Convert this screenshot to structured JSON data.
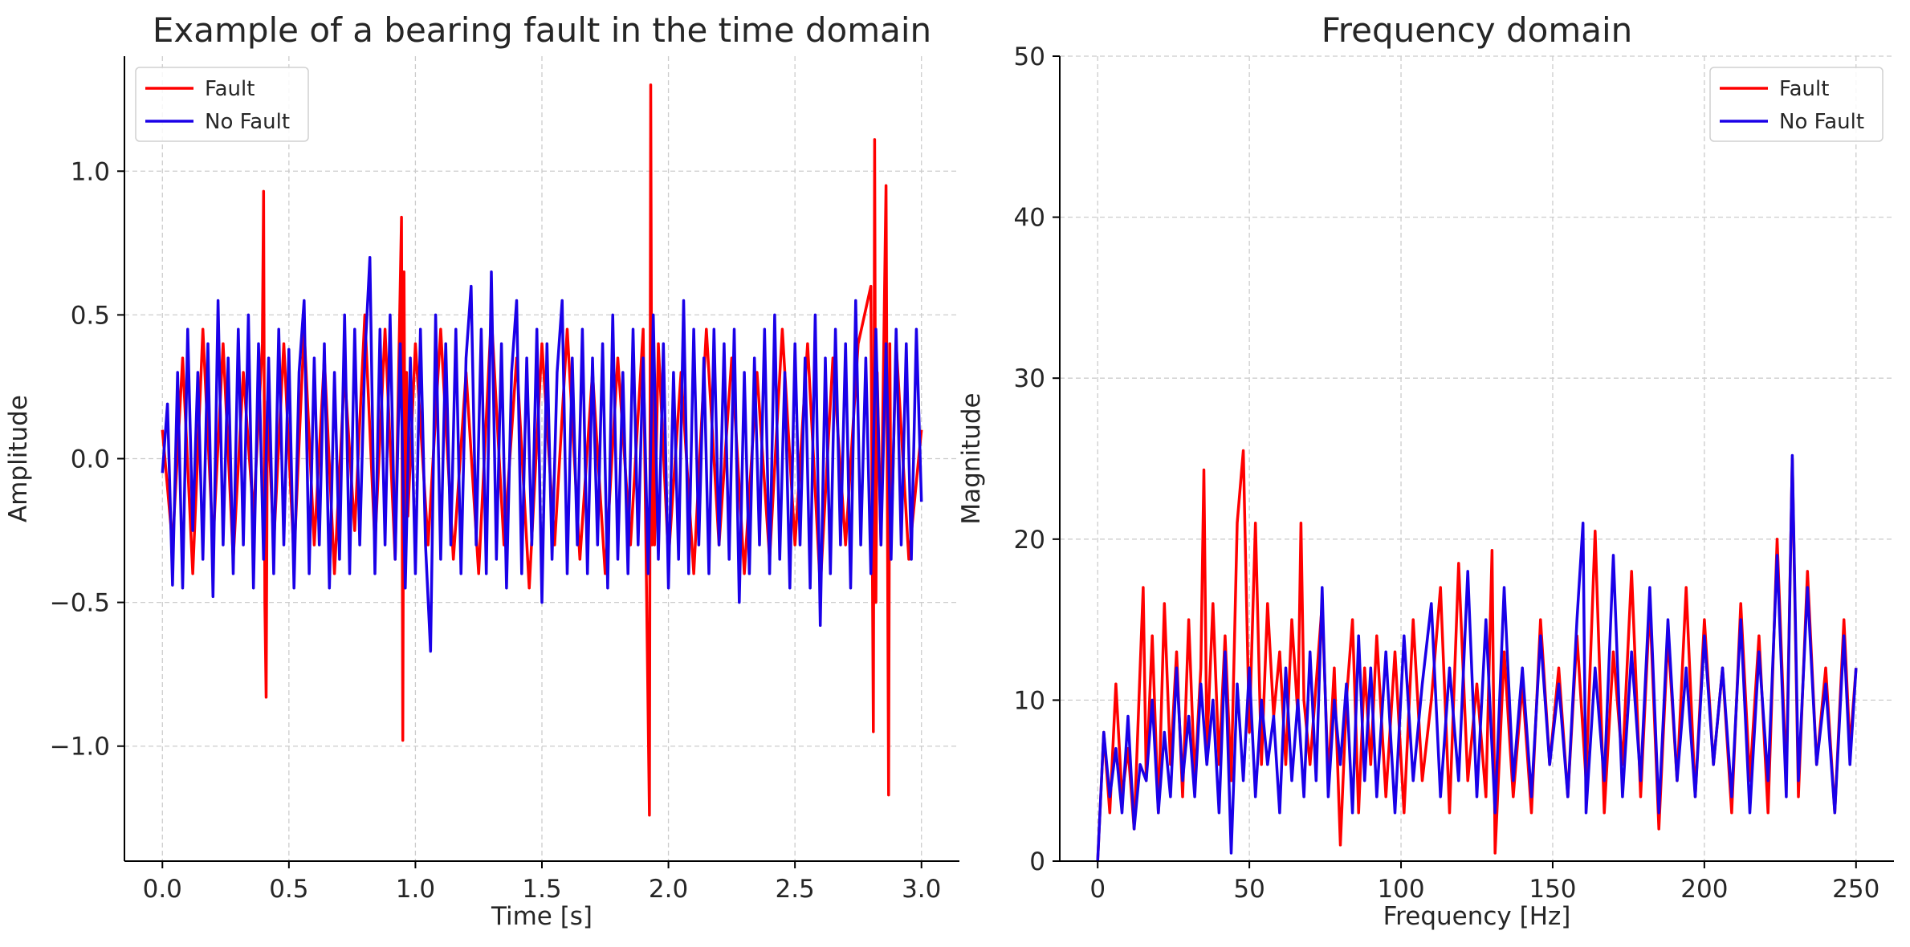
{
  "chart_data": [
    {
      "type": "line",
      "title": "Example of a bearing fault in the time domain",
      "xlabel": "Time [s]",
      "ylabel": "Amplitude",
      "xlim": [
        -0.15,
        3.15
      ],
      "ylim": [
        -1.4,
        1.4
      ],
      "xticks": [
        0.0,
        0.5,
        1.0,
        1.5,
        2.0,
        2.5,
        3.0
      ],
      "xtick_labels": [
        "0.0",
        "0.5",
        "1.0",
        "1.5",
        "2.0",
        "2.5",
        "3.0"
      ],
      "yticks": [
        -1.0,
        -0.5,
        0.0,
        0.5,
        1.0
      ],
      "ytick_labels": [
        "−1.0",
        "−0.5",
        "0.0",
        "0.5",
        "1.0"
      ],
      "grid": true,
      "legend": "top-left",
      "series": [
        {
          "name": "Fault",
          "color": "#ff0000",
          "x": [
            0.0,
            0.04,
            0.08,
            0.12,
            0.16,
            0.2,
            0.24,
            0.28,
            0.32,
            0.36,
            0.395,
            0.4,
            0.405,
            0.41,
            0.415,
            0.44,
            0.48,
            0.52,
            0.56,
            0.6,
            0.64,
            0.68,
            0.72,
            0.76,
            0.8,
            0.84,
            0.88,
            0.92,
            0.945,
            0.95,
            0.955,
            0.96,
            0.965,
            0.97,
            1.0,
            1.05,
            1.1,
            1.15,
            1.2,
            1.25,
            1.3,
            1.35,
            1.4,
            1.45,
            1.5,
            1.55,
            1.6,
            1.65,
            1.7,
            1.75,
            1.8,
            1.85,
            1.9,
            1.925,
            1.93,
            1.935,
            1.94,
            1.945,
            1.96,
            2.0,
            2.05,
            2.1,
            2.15,
            2.2,
            2.25,
            2.3,
            2.35,
            2.4,
            2.45,
            2.5,
            2.55,
            2.6,
            2.65,
            2.7,
            2.75,
            2.8,
            2.81,
            2.815,
            2.82,
            2.825,
            2.84,
            2.86,
            2.87,
            2.875,
            2.88,
            2.9,
            2.95,
            3.0
          ],
          "y": [
            0.1,
            -0.3,
            0.35,
            -0.4,
            0.45,
            -0.3,
            0.4,
            -0.35,
            0.3,
            -0.2,
            0.4,
            0.93,
            -0.5,
            -0.83,
            0.2,
            -0.3,
            0.4,
            -0.35,
            0.45,
            -0.3,
            0.35,
            -0.4,
            0.3,
            -0.25,
            0.5,
            -0.3,
            0.45,
            -0.35,
            0.84,
            -0.98,
            0.65,
            -0.3,
            0.3,
            -0.2,
            0.4,
            -0.3,
            0.45,
            -0.35,
            0.3,
            -0.4,
            0.5,
            -0.3,
            0.35,
            -0.45,
            0.4,
            -0.3,
            0.45,
            -0.35,
            0.3,
            -0.4,
            0.35,
            -0.3,
            0.45,
            -1.24,
            1.3,
            -0.3,
            0.45,
            -0.3,
            0.4,
            -0.35,
            0.3,
            -0.4,
            0.45,
            -0.3,
            0.35,
            -0.4,
            0.3,
            -0.35,
            0.45,
            -0.3,
            0.4,
            -0.45,
            0.35,
            -0.3,
            0.4,
            0.6,
            -0.95,
            1.11,
            -0.5,
            0.3,
            -0.3,
            0.95,
            -1.17,
            0.4,
            -0.3,
            0.4,
            -0.35,
            0.1
          ]
        },
        {
          "name": "No Fault",
          "color": "#1a00e8",
          "x": [
            0.0,
            0.02,
            0.04,
            0.06,
            0.08,
            0.1,
            0.12,
            0.14,
            0.16,
            0.18,
            0.2,
            0.22,
            0.24,
            0.26,
            0.28,
            0.3,
            0.32,
            0.34,
            0.36,
            0.38,
            0.4,
            0.42,
            0.44,
            0.46,
            0.48,
            0.5,
            0.52,
            0.54,
            0.56,
            0.58,
            0.6,
            0.62,
            0.64,
            0.66,
            0.68,
            0.7,
            0.72,
            0.74,
            0.76,
            0.78,
            0.8,
            0.82,
            0.84,
            0.86,
            0.88,
            0.9,
            0.92,
            0.94,
            0.96,
            0.98,
            1.0,
            1.02,
            1.04,
            1.06,
            1.08,
            1.1,
            1.12,
            1.14,
            1.16,
            1.18,
            1.2,
            1.22,
            1.24,
            1.26,
            1.28,
            1.3,
            1.32,
            1.34,
            1.36,
            1.38,
            1.4,
            1.42,
            1.44,
            1.46,
            1.48,
            1.5,
            1.52,
            1.54,
            1.56,
            1.58,
            1.6,
            1.62,
            1.64,
            1.66,
            1.68,
            1.7,
            1.72,
            1.74,
            1.76,
            1.78,
            1.8,
            1.82,
            1.84,
            1.86,
            1.88,
            1.9,
            1.92,
            1.94,
            1.96,
            1.98,
            2.0,
            2.02,
            2.04,
            2.06,
            2.08,
            2.1,
            2.12,
            2.14,
            2.16,
            2.18,
            2.2,
            2.22,
            2.24,
            2.26,
            2.28,
            2.3,
            2.32,
            2.34,
            2.36,
            2.38,
            2.4,
            2.42,
            2.44,
            2.46,
            2.48,
            2.5,
            2.52,
            2.54,
            2.56,
            2.58,
            2.6,
            2.62,
            2.64,
            2.66,
            2.68,
            2.7,
            2.72,
            2.74,
            2.76,
            2.78,
            2.8,
            2.82,
            2.84,
            2.86,
            2.88,
            2.9,
            2.92,
            2.94,
            2.96,
            2.98,
            3.0
          ],
          "y": [
            -0.05,
            0.19,
            -0.44,
            0.3,
            -0.45,
            0.45,
            -0.25,
            0.3,
            -0.35,
            0.4,
            -0.48,
            0.55,
            -0.3,
            0.35,
            -0.4,
            0.45,
            -0.3,
            0.5,
            -0.45,
            0.4,
            -0.35,
            0.35,
            -0.4,
            0.45,
            -0.3,
            0.38,
            -0.45,
            0.3,
            0.55,
            -0.4,
            0.35,
            -0.3,
            0.4,
            -0.45,
            0.3,
            -0.35,
            0.5,
            -0.4,
            0.45,
            -0.3,
            0.35,
            0.7,
            -0.4,
            0.45,
            -0.3,
            0.5,
            -0.35,
            0.4,
            -0.45,
            0.35,
            -0.4,
            0.45,
            -0.3,
            -0.67,
            0.5,
            -0.35,
            0.4,
            -0.3,
            0.45,
            -0.4,
            0.35,
            0.6,
            -0.3,
            0.45,
            -0.4,
            0.65,
            -0.35,
            0.4,
            -0.45,
            0.3,
            0.55,
            -0.4,
            0.35,
            -0.3,
            0.45,
            -0.5,
            0.4,
            -0.35,
            0.3,
            0.55,
            -0.4,
            0.35,
            -0.3,
            0.45,
            -0.4,
            0.35,
            -0.3,
            0.4,
            -0.45,
            0.5,
            -0.35,
            0.3,
            -0.4,
            0.45,
            -0.3,
            0.35,
            -0.4,
            0.5,
            -0.35,
            0.4,
            -0.45,
            0.3,
            -0.35,
            0.55,
            -0.4,
            0.45,
            -0.3,
            0.35,
            -0.4,
            0.45,
            -0.3,
            0.4,
            -0.35,
            0.45,
            -0.5,
            0.3,
            -0.4,
            0.35,
            -0.3,
            0.45,
            -0.4,
            0.5,
            -0.35,
            0.3,
            -0.45,
            0.4,
            -0.3,
            0.35,
            -0.45,
            0.5,
            -0.58,
            0.35,
            -0.4,
            0.45,
            -0.3,
            0.4,
            -0.45,
            0.55,
            -0.3,
            0.35,
            -0.4,
            0.45,
            -0.3,
            0.4,
            -0.35,
            0.45,
            -0.3,
            0.4,
            -0.35,
            0.45,
            -0.15
          ]
        }
      ]
    },
    {
      "type": "line",
      "title": "Frequency domain",
      "xlabel": "Frequency [Hz]",
      "ylabel": "Magnitude",
      "xlim": [
        -12.5,
        262.5
      ],
      "ylim": [
        0,
        50
      ],
      "xticks": [
        0,
        50,
        100,
        150,
        200,
        250
      ],
      "xtick_labels": [
        "0",
        "50",
        "100",
        "150",
        "200",
        "250"
      ],
      "yticks": [
        0,
        10,
        20,
        30,
        40,
        50
      ],
      "ytick_labels": [
        "0",
        "10",
        "20",
        "30",
        "40",
        "50"
      ],
      "grid": true,
      "legend": "top-right",
      "series": [
        {
          "name": "Fault",
          "color": "#ff0000",
          "x": [
            0,
            2,
            4,
            6,
            8,
            10,
            12,
            14,
            15,
            16,
            18,
            20,
            22,
            24,
            26,
            28,
            30,
            32,
            34,
            35,
            36,
            38,
            40,
            42,
            44,
            46,
            48,
            50,
            52,
            54,
            56,
            58,
            60,
            62,
            64,
            66,
            67,
            68,
            70,
            72,
            74,
            76,
            78,
            80,
            82,
            84,
            86,
            88,
            90,
            92,
            95,
            98,
            101,
            104,
            107,
            110,
            113,
            116,
            119,
            122,
            125,
            128,
            130,
            131,
            134,
            137,
            140,
            143,
            146,
            149,
            152,
            155,
            158,
            161,
            164,
            167,
            170,
            173,
            176,
            179,
            182,
            185,
            188,
            191,
            194,
            197,
            200,
            203,
            206,
            209,
            212,
            215,
            218,
            221,
            224,
            227,
            229,
            231,
            234,
            237,
            240,
            243,
            246,
            248,
            250
          ],
          "y": [
            0,
            8,
            3,
            11,
            4,
            7,
            2,
            12,
            17,
            5,
            14,
            3,
            16,
            6,
            13,
            4,
            15,
            5,
            12,
            24.3,
            7,
            16,
            6,
            14,
            5,
            21,
            25.5,
            8,
            21,
            6,
            16,
            9,
            13,
            6,
            15,
            9,
            21,
            10,
            6,
            11,
            16,
            5,
            12,
            1,
            10,
            15,
            3,
            12,
            6,
            14,
            4,
            13,
            3,
            15,
            5,
            10,
            17,
            3,
            18.5,
            5,
            11,
            4,
            19.3,
            0.5,
            13,
            4,
            11,
            3,
            15,
            6,
            12,
            4,
            14,
            5,
            20.5,
            3,
            13,
            6,
            18,
            4,
            16,
            2,
            14,
            5,
            17,
            4,
            15,
            6,
            12,
            3,
            16,
            5,
            14,
            3,
            20,
            5,
            25,
            4,
            18,
            6,
            12,
            3,
            15,
            7,
            12
          ]
        },
        {
          "name": "No Fault",
          "color": "#1a00e8",
          "x": [
            0,
            2,
            4,
            6,
            8,
            10,
            12,
            14,
            16,
            18,
            20,
            22,
            24,
            26,
            28,
            30,
            32,
            34,
            36,
            38,
            40,
            42,
            44,
            46,
            48,
            50,
            52,
            54,
            56,
            58,
            60,
            62,
            64,
            66,
            68,
            70,
            72,
            74,
            76,
            78,
            80,
            82,
            84,
            86,
            88,
            90,
            92,
            95,
            98,
            101,
            104,
            107,
            110,
            113,
            116,
            119,
            122,
            125,
            128,
            131,
            134,
            137,
            140,
            143,
            146,
            149,
            152,
            155,
            158,
            160,
            161,
            164,
            167,
            170,
            173,
            176,
            179,
            182,
            185,
            188,
            191,
            194,
            197,
            200,
            203,
            206,
            209,
            212,
            215,
            218,
            221,
            224,
            227,
            229,
            231,
            234,
            237,
            240,
            243,
            246,
            248,
            250
          ],
          "y": [
            0,
            8,
            4,
            7,
            3,
            9,
            2,
            6,
            5,
            10,
            3,
            8,
            4,
            12,
            5,
            9,
            4,
            11,
            6,
            10,
            3,
            13,
            0.5,
            11,
            5,
            12,
            4,
            10,
            6,
            9,
            3,
            12,
            5,
            10,
            4,
            13,
            5,
            17,
            4,
            10,
            6,
            11,
            3,
            14,
            5,
            12,
            4,
            13,
            3,
            14,
            5,
            11,
            16,
            4,
            12,
            5,
            18,
            4,
            15,
            3,
            17,
            5,
            12,
            4,
            14,
            6,
            11,
            4,
            15,
            21,
            3,
            12,
            5,
            19,
            4,
            13,
            5,
            17,
            3,
            15,
            5,
            12,
            4,
            14,
            6,
            12,
            4,
            15,
            3,
            13,
            5,
            19,
            4,
            25.2,
            5,
            17,
            6,
            11,
            3,
            14,
            6,
            12
          ]
        }
      ]
    }
  ]
}
